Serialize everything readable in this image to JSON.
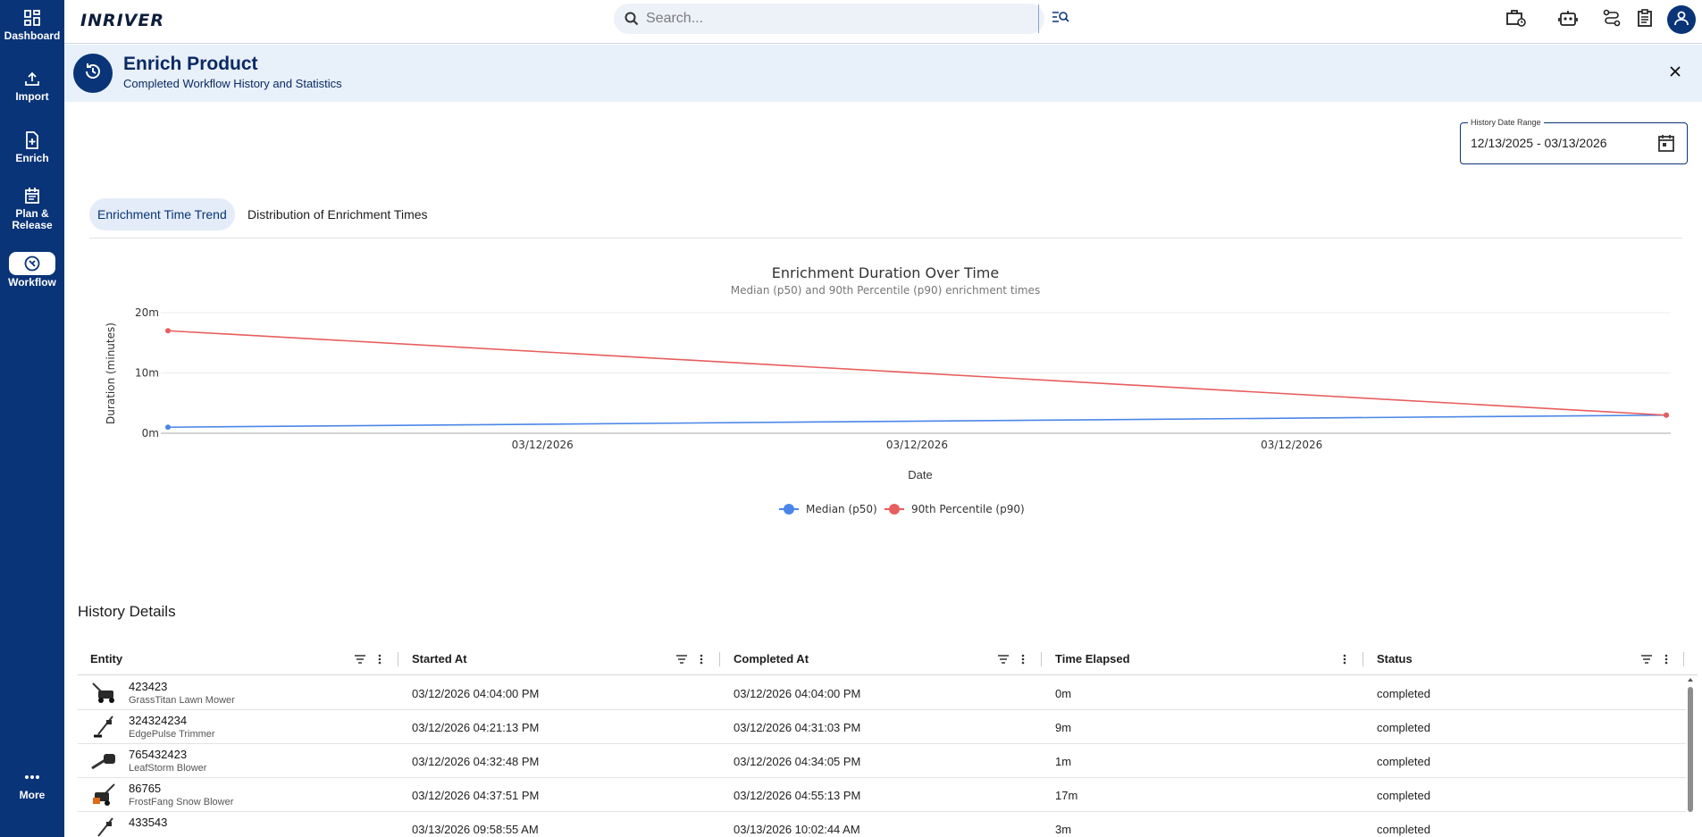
{
  "sidebar": {
    "items": [
      {
        "label": "Dashboard",
        "icon": "dashboard-icon"
      },
      {
        "label": "Import",
        "icon": "upload-icon"
      },
      {
        "label": "Enrich",
        "icon": "enrich-icon"
      },
      {
        "label": "Plan &\nRelease",
        "icon": "calendar-icon"
      },
      {
        "label": "Workflow",
        "icon": "workflow-icon"
      },
      {
        "label": "More",
        "icon": "more-icon"
      }
    ]
  },
  "topbar": {
    "logo": "INRIVER",
    "search_placeholder": "Search..."
  },
  "header": {
    "title": "Enrich Product",
    "subtitle": "Completed Workflow History and Statistics"
  },
  "date_range": {
    "label": "History Date Range",
    "value": "12/13/2025 - 03/13/2026"
  },
  "tabs": [
    {
      "label": "Enrichment Time Trend"
    },
    {
      "label": "Distribution of Enrichment Times"
    }
  ],
  "chart_data": {
    "type": "line",
    "title": "Enrichment Duration Over Time",
    "subtitle": "Median (p50) and 90th Percentile (p90) enrichment times",
    "xlabel": "Date",
    "ylabel": "Duration (minutes)",
    "x_tick_labels": [
      "03/12/2026",
      "03/12/2026",
      "03/12/2026"
    ],
    "y_tick_labels": [
      "0m",
      "10m",
      "20m"
    ],
    "ylim": [
      0,
      20
    ],
    "x": [
      0,
      1
    ],
    "series": [
      {
        "name": "Median (p50)",
        "color": "#4a86e8",
        "values": [
          1,
          3
        ]
      },
      {
        "name": "90th Percentile (p90)",
        "color": "#e85d5d",
        "values": [
          17,
          3
        ]
      }
    ],
    "legend_position": "bottom-center",
    "grid": true
  },
  "history": {
    "title": "History Details",
    "columns": [
      "Entity",
      "Started At",
      "Completed At",
      "Time Elapsed",
      "Status"
    ],
    "rows": [
      {
        "id": "423423",
        "name": "GrassTitan Lawn Mower",
        "started": "03/12/2026 04:04:00 PM",
        "completed": "03/12/2026 04:04:00 PM",
        "elapsed": "0m",
        "status": "completed"
      },
      {
        "id": "324324234",
        "name": "EdgePulse Trimmer",
        "started": "03/12/2026 04:21:13 PM",
        "completed": "03/12/2026 04:31:03 PM",
        "elapsed": "9m",
        "status": "completed"
      },
      {
        "id": "765432423",
        "name": "LeafStorm Blower",
        "started": "03/12/2026 04:32:48 PM",
        "completed": "03/12/2026 04:34:05 PM",
        "elapsed": "1m",
        "status": "completed"
      },
      {
        "id": "86765",
        "name": "FrostFang Snow Blower",
        "started": "03/12/2026 04:37:51 PM",
        "completed": "03/12/2026 04:55:13 PM",
        "elapsed": "17m",
        "status": "completed"
      },
      {
        "id": "433543",
        "name": "",
        "started": "03/13/2026 09:58:55 AM",
        "completed": "03/13/2026 10:02:44 AM",
        "elapsed": "3m",
        "status": "completed"
      }
    ]
  }
}
